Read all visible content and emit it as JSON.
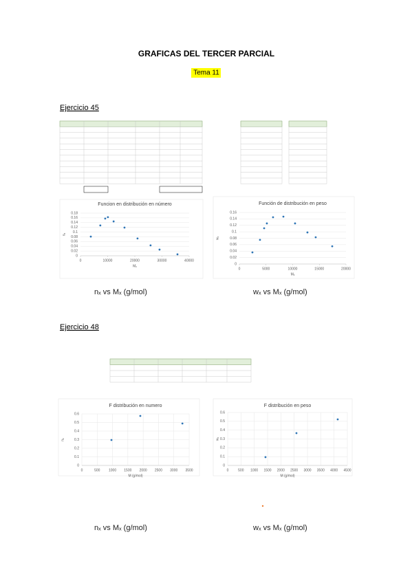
{
  "document": {
    "title": "GRAFICAS DEL TERCER PARCIAL",
    "subtitle": "Tema 11",
    "sections": [
      {
        "heading": "Ejercicio 45",
        "captions": [
          "nₓ vs Mₓ (g/mol)",
          "wₓ vs Mₓ (g/mol)"
        ]
      },
      {
        "heading": "Ejercicio 48",
        "captions": [
          "nₓ vs Mₓ (g/mol)",
          "wₓ vs Mₓ (g/mol)"
        ]
      }
    ]
  },
  "chart_data": [
    {
      "type": "scatter",
      "title": "Funcion en distribución en número",
      "x_label": "Mₓ",
      "y_label": "nₓ",
      "color": "#2e75b6",
      "grid": true,
      "x": [
        3800,
        7300,
        9100,
        10100,
        12200,
        16200,
        21000,
        25800,
        29100,
        35700
      ],
      "values": [
        0.081,
        0.128,
        0.157,
        0.163,
        0.145,
        0.119,
        0.073,
        0.044,
        0.026,
        0.006
      ],
      "xlim": [
        0,
        40000
      ],
      "xticks": [
        0,
        10000,
        20000,
        30000,
        40000
      ],
      "ylim": [
        0,
        0.18
      ],
      "yticks": [
        0,
        0.02,
        0.04,
        0.06,
        0.08,
        0.1,
        0.12,
        0.14,
        0.16,
        0.18
      ]
    },
    {
      "type": "scatter",
      "title": "Función de distribución en peso",
      "x_label": "Mₓ",
      "y_label": "wₓ",
      "color": "#2e75b6",
      "grid": true,
      "x": [
        2450,
        3870,
        4650,
        5160,
        6320,
        8260,
        10450,
        12770,
        14320,
        17420
      ],
      "values": [
        0.036,
        0.075,
        0.111,
        0.126,
        0.145,
        0.147,
        0.126,
        0.098,
        0.083,
        0.055
      ],
      "xlim": [
        0,
        20000
      ],
      "xticks": [
        0,
        5000,
        10000,
        15000,
        20000
      ],
      "ylim": [
        0,
        0.16
      ],
      "yticks": [
        0,
        0.02,
        0.04,
        0.06,
        0.08,
        0.1,
        0.12,
        0.14,
        0.16
      ]
    },
    {
      "type": "scatter",
      "title": "F distribución en numero",
      "x_label": "M (g/mol)",
      "y_label": "nₓ",
      "color": "#2e75b6",
      "grid": true,
      "x": [
        965,
        1907,
        3280
      ],
      "values": [
        0.296,
        0.576,
        0.488
      ],
      "xlim": [
        0,
        3500
      ],
      "xticks": [
        0,
        500,
        1000,
        1500,
        2000,
        2500,
        3000,
        3500
      ],
      "ylim": [
        0,
        0.6
      ],
      "yticks": [
        0,
        0.1,
        0.2,
        0.3,
        0.4,
        0.5,
        0.6
      ]
    },
    {
      "type": "scatter",
      "title": "F distribución en peso",
      "x_label": "M (g/mol)",
      "y_label": "wₓ",
      "color": "#2e75b6",
      "grid": true,
      "x": [
        1422,
        2586,
        4138
      ],
      "values": [
        0.094,
        0.366,
        0.522
      ],
      "xlim": [
        0,
        4500
      ],
      "xticks": [
        0,
        500,
        1000,
        1500,
        2000,
        2500,
        3000,
        3500,
        4000,
        4500
      ],
      "ylim": [
        0,
        0.6
      ],
      "yticks": [
        0,
        0.1,
        0.2,
        0.3,
        0.4,
        0.5,
        0.6
      ]
    }
  ]
}
